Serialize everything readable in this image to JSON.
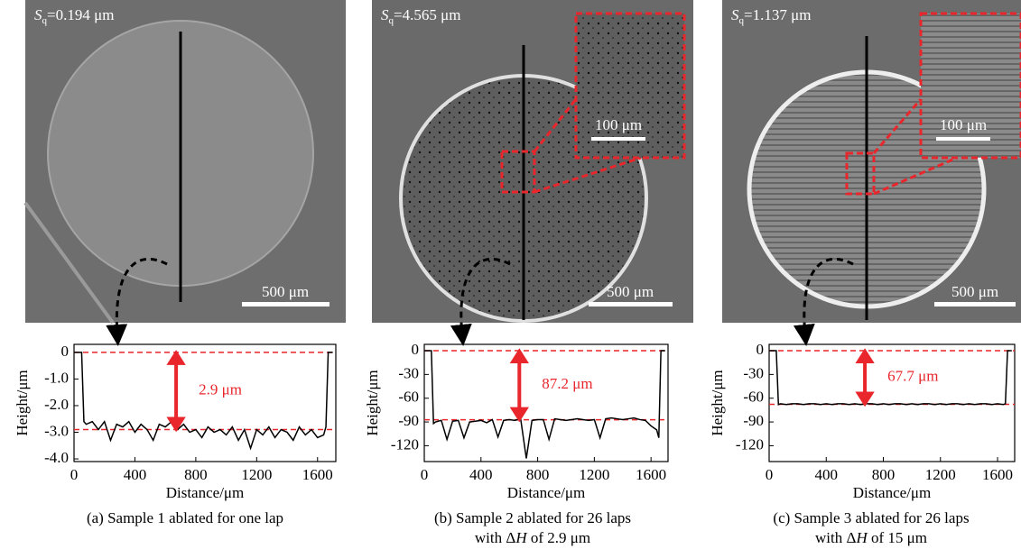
{
  "panels": [
    {
      "sq": [
        {
          "text": "S",
          "style": "italic"
        },
        {
          "text": "q",
          "style": "sub"
        },
        {
          "text": "=0.194 μm"
        }
      ],
      "scale_bar": "500 μm",
      "caption": [
        [
          {
            "text": "(a) Sample 1 ablated for one lap"
          }
        ]
      ]
    },
    {
      "sq": [
        {
          "text": "S",
          "style": "italic"
        },
        {
          "text": "q",
          "style": "sub"
        },
        {
          "text": "=4.565 μm"
        }
      ],
      "scale_bar": "500 μm",
      "inset_scale_bar": "100 μm",
      "caption": [
        [
          {
            "text": "(b) Sample 2 ablated for 26 laps"
          }
        ],
        [
          {
            "text": "with Δ"
          },
          {
            "text": "H",
            "style": "italic"
          },
          {
            "text": " of 2.9 μm"
          }
        ]
      ]
    },
    {
      "sq": [
        {
          "text": "S",
          "style": "italic"
        },
        {
          "text": "q",
          "style": "sub"
        },
        {
          "text": "=1.137 μm"
        }
      ],
      "scale_bar": "500 μm",
      "inset_scale_bar": "100 μm",
      "caption": [
        [
          {
            "text": "(c) Sample 3 ablated for 26 laps"
          }
        ],
        [
          {
            "text": "with Δ"
          },
          {
            "text": "H",
            "style": "italic"
          },
          {
            "text": " of 15 μm"
          }
        ]
      ]
    }
  ],
  "chart_data": [
    {
      "type": "line",
      "x_label": "Distance/μm",
      "y_label": "Height/μm",
      "x": [
        0,
        50,
        65,
        80,
        120,
        160,
        200,
        240,
        280,
        320,
        360,
        400,
        440,
        480,
        520,
        560,
        600,
        640,
        680,
        720,
        760,
        800,
        840,
        880,
        920,
        960,
        1000,
        1040,
        1080,
        1120,
        1160,
        1200,
        1240,
        1280,
        1320,
        1360,
        1400,
        1440,
        1480,
        1520,
        1560,
        1600,
        1640,
        1655,
        1670,
        1700
      ],
      "series": [
        {
          "color": "#000000",
          "values": [
            0,
            0,
            -2.6,
            -2.7,
            -2.6,
            -2.9,
            -2.6,
            -3.3,
            -2.7,
            -2.8,
            -2.6,
            -3.0,
            -2.7,
            -2.9,
            -3.3,
            -2.7,
            -2.8,
            -2.6,
            -2.9,
            -2.7,
            -3.0,
            -2.9,
            -3.2,
            -2.8,
            -3.0,
            -2.9,
            -3.1,
            -2.8,
            -3.3,
            -2.9,
            -3.6,
            -2.9,
            -3.1,
            -2.8,
            -3.2,
            -2.9,
            -3.0,
            -3.3,
            -2.8,
            -3.1,
            -2.9,
            -3.2,
            -3.1,
            -2.8,
            0,
            0
          ]
        }
      ],
      "xlim": [
        0,
        1720
      ],
      "xticks": [
        0,
        400,
        800,
        1200,
        1600
      ],
      "ylim": [
        -4.1,
        0.3
      ],
      "yticks": [
        0,
        {
          "value": -1,
          "label": "-1.0"
        },
        {
          "value": -2,
          "label": "-2.0"
        },
        {
          "value": -3,
          "label": "-3.0"
        },
        {
          "value": -4,
          "label": "-4.0"
        }
      ],
      "ref_lines": [
        0,
        -2.9
      ],
      "ref_color": "#e8262b",
      "annotation": "2.9 μm"
    },
    {
      "type": "line",
      "x_label": "Distance/μm",
      "y_label": "Height/μm",
      "x": [
        0,
        50,
        65,
        80,
        120,
        160,
        200,
        240,
        280,
        320,
        360,
        400,
        440,
        480,
        520,
        560,
        600,
        640,
        680,
        720,
        760,
        800,
        840,
        880,
        920,
        960,
        1000,
        1040,
        1080,
        1120,
        1160,
        1200,
        1240,
        1280,
        1320,
        1360,
        1400,
        1440,
        1480,
        1520,
        1560,
        1600,
        1640,
        1655,
        1670,
        1700
      ],
      "series": [
        {
          "color": "#000000",
          "values": [
            0,
            0,
            -92,
            -90,
            -88,
            -112,
            -89,
            -88,
            -110,
            -90,
            -89,
            -88,
            -91,
            -87,
            -109,
            -88,
            -87,
            -88,
            -86,
            -136,
            -88,
            -87,
            -87,
            -112,
            -86,
            -87,
            -88,
            -87,
            -86,
            -87,
            -88,
            -87,
            -110,
            -86,
            -85,
            -86,
            -87,
            -86,
            -85,
            -87,
            -88,
            -95,
            -100,
            -110,
            0,
            0
          ]
        }
      ],
      "xlim": [
        0,
        1720
      ],
      "xticks": [
        0,
        400,
        800,
        1200,
        1600
      ],
      "ylim": [
        -140,
        8
      ],
      "yticks": [
        0,
        -30,
        -60,
        -90,
        -120
      ],
      "ref_lines": [
        0,
        -87.2
      ],
      "ref_color": "#e8262b",
      "annotation": "87.2 μm"
    },
    {
      "type": "line",
      "x_label": "Distance/μm",
      "y_label": "Height/μm",
      "x": [
        0,
        50,
        65,
        80,
        120,
        160,
        200,
        240,
        280,
        320,
        360,
        400,
        440,
        480,
        520,
        560,
        600,
        640,
        680,
        720,
        760,
        800,
        840,
        880,
        920,
        960,
        1000,
        1040,
        1080,
        1120,
        1160,
        1200,
        1240,
        1280,
        1320,
        1360,
        1400,
        1440,
        1480,
        1520,
        1560,
        1600,
        1640,
        1655,
        1670,
        1700
      ],
      "series": [
        {
          "color": "#000000",
          "values": [
            0,
            0,
            -68,
            -67,
            -68,
            -67,
            -67,
            -68,
            -67,
            -67,
            -68,
            -67,
            -68,
            -67,
            -67,
            -68,
            -67,
            -68,
            -67,
            -67,
            -68,
            -67,
            -68,
            -67,
            -67,
            -68,
            -67,
            -68,
            -67,
            -67,
            -68,
            -67,
            -68,
            -67,
            -67,
            -68,
            -67,
            -68,
            -67,
            -67,
            -68,
            -67,
            -68,
            -67,
            0,
            0
          ]
        }
      ],
      "xlim": [
        0,
        1720
      ],
      "xticks": [
        0,
        400,
        800,
        1200,
        1600
      ],
      "ylim": [
        -140,
        8
      ],
      "yticks": [
        0,
        -30,
        -60,
        -90,
        -120
      ],
      "ref_lines": [
        0,
        -67.7
      ],
      "ref_color": "#e8262b",
      "annotation": "67.7 μm"
    }
  ]
}
